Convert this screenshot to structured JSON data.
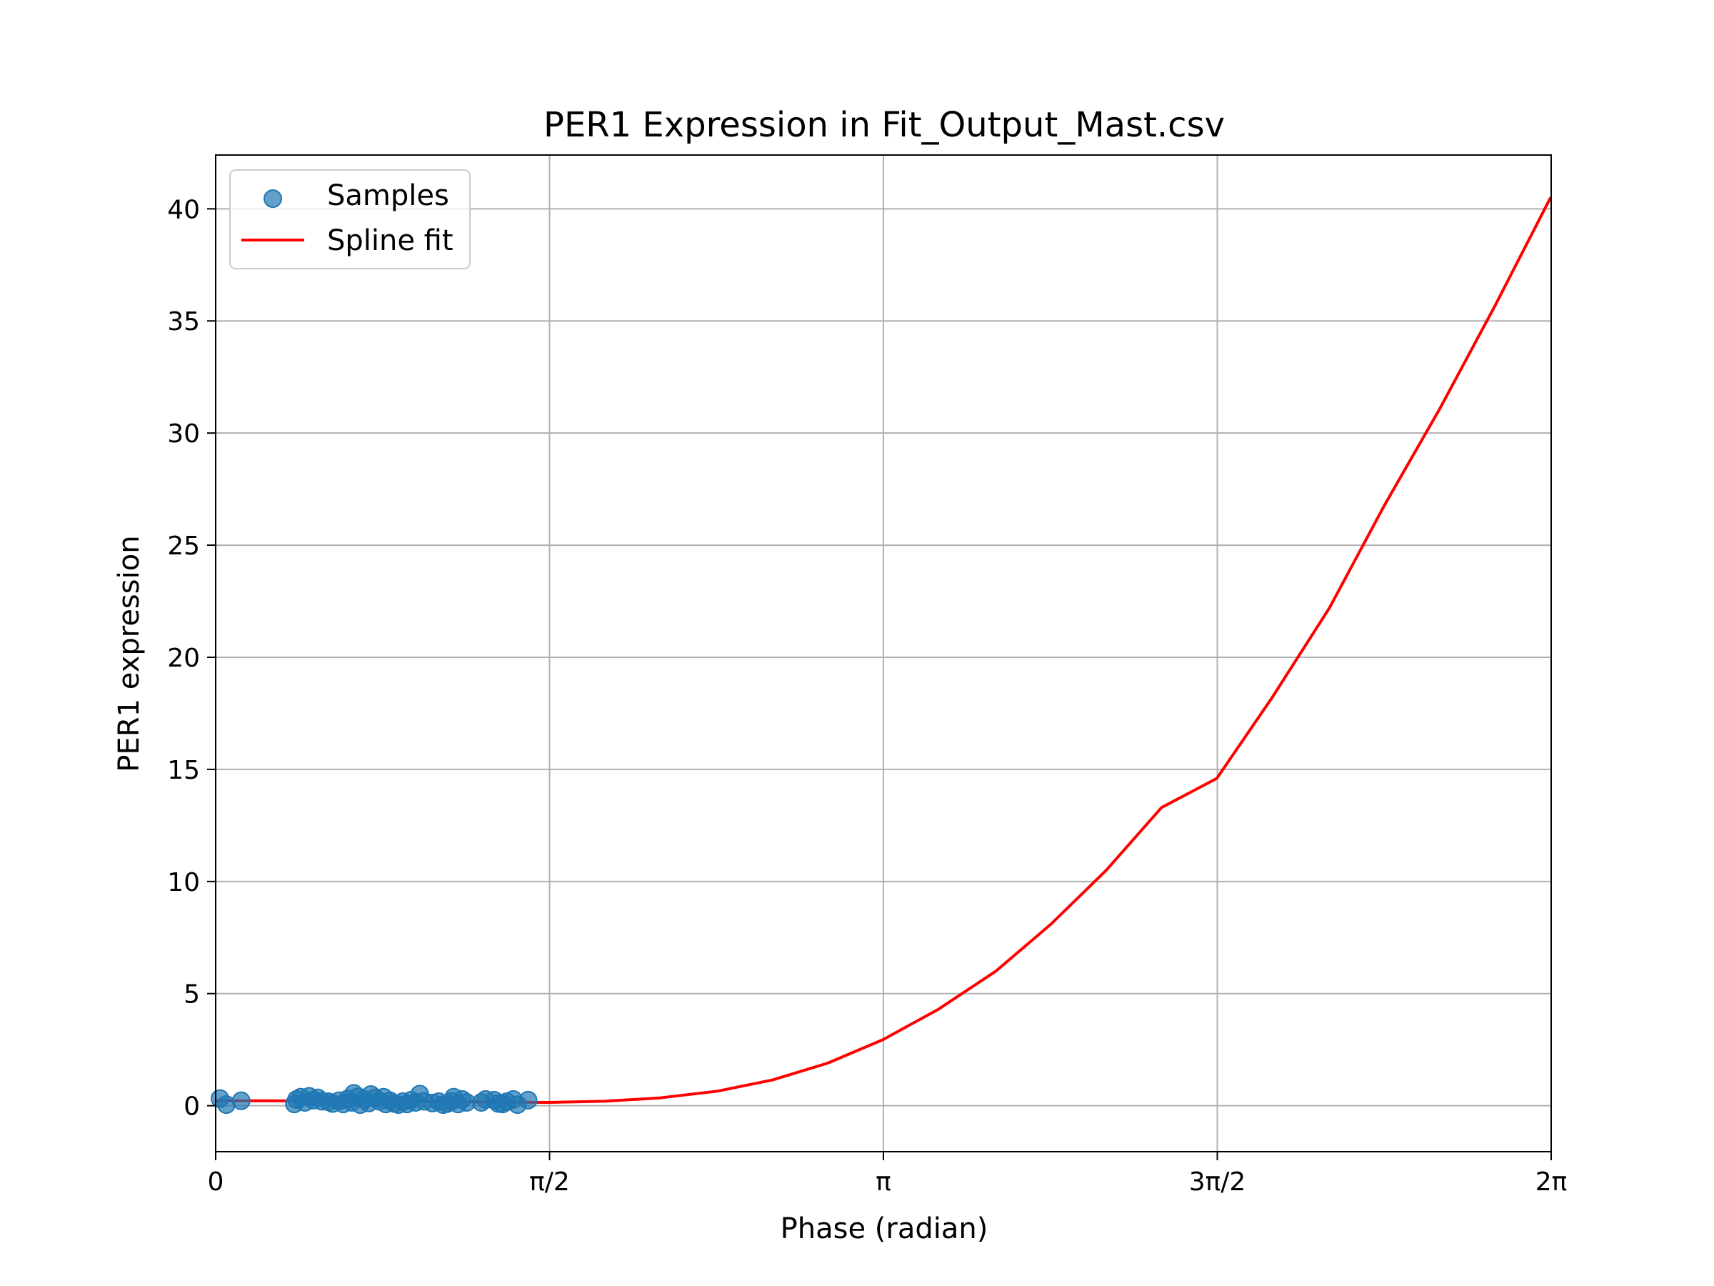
{
  "chart_data": {
    "type": "scatter",
    "title": "PER1 Expression in Fit_Output_Mast.csv",
    "xlabel": "Phase (radian)",
    "ylabel": "PER1 expression",
    "xlim": [
      0,
      6.283185
    ],
    "ylim": [
      -2.05,
      42.4
    ],
    "grid": true,
    "legend_position": "top-left",
    "x_ticks": [
      {
        "value": 0,
        "label": "0"
      },
      {
        "value": 1.570796,
        "label": "π/2"
      },
      {
        "value": 3.141593,
        "label": "π"
      },
      {
        "value": 4.712389,
        "label": "3π/2"
      },
      {
        "value": 6.283185,
        "label": "2π"
      }
    ],
    "y_ticks": [
      {
        "value": 0,
        "label": "0"
      },
      {
        "value": 5,
        "label": "5"
      },
      {
        "value": 10,
        "label": "10"
      },
      {
        "value": 15,
        "label": "15"
      },
      {
        "value": 20,
        "label": "20"
      },
      {
        "value": 25,
        "label": "25"
      },
      {
        "value": 30,
        "label": "30"
      },
      {
        "value": 35,
        "label": "35"
      },
      {
        "value": 40,
        "label": "40"
      }
    ],
    "series": [
      {
        "name": "Samples",
        "kind": "scatter",
        "color": "#1f77b4",
        "points": [
          [
            0.02,
            0.32
          ],
          [
            0.05,
            0.05
          ],
          [
            0.12,
            0.22
          ],
          [
            0.37,
            0.08
          ],
          [
            0.38,
            0.28
          ],
          [
            0.4,
            0.38
          ],
          [
            0.42,
            0.15
          ],
          [
            0.44,
            0.42
          ],
          [
            0.46,
            0.25
          ],
          [
            0.48,
            0.35
          ],
          [
            0.5,
            0.2
          ],
          [
            0.53,
            0.18
          ],
          [
            0.55,
            0.1
          ],
          [
            0.58,
            0.22
          ],
          [
            0.6,
            0.08
          ],
          [
            0.62,
            0.3
          ],
          [
            0.64,
            0.15
          ],
          [
            0.65,
            0.55
          ],
          [
            0.67,
            0.4
          ],
          [
            0.68,
            0.05
          ],
          [
            0.7,
            0.28
          ],
          [
            0.72,
            0.12
          ],
          [
            0.73,
            0.5
          ],
          [
            0.75,
            0.35
          ],
          [
            0.77,
            0.2
          ],
          [
            0.79,
            0.38
          ],
          [
            0.8,
            0.08
          ],
          [
            0.82,
            0.22
          ],
          [
            0.84,
            0.1
          ],
          [
            0.86,
            0.05
          ],
          [
            0.88,
            0.18
          ],
          [
            0.9,
            0.08
          ],
          [
            0.92,
            0.25
          ],
          [
            0.94,
            0.15
          ],
          [
            0.96,
            0.52
          ],
          [
            0.98,
            0.2
          ],
          [
            1.02,
            0.12
          ],
          [
            1.05,
            0.18
          ],
          [
            1.07,
            0.05
          ],
          [
            1.09,
            0.1
          ],
          [
            1.11,
            0.2
          ],
          [
            1.12,
            0.38
          ],
          [
            1.14,
            0.08
          ],
          [
            1.16,
            0.28
          ],
          [
            1.18,
            0.15
          ],
          [
            1.25,
            0.15
          ],
          [
            1.27,
            0.28
          ],
          [
            1.31,
            0.25
          ],
          [
            1.33,
            0.1
          ],
          [
            1.35,
            0.08
          ],
          [
            1.37,
            0.18
          ],
          [
            1.4,
            0.28
          ],
          [
            1.42,
            0.05
          ],
          [
            1.47,
            0.25
          ]
        ]
      },
      {
        "name": "Spline fit",
        "kind": "line",
        "color": "#ff0000",
        "points": [
          [
            0.0,
            0.22
          ],
          [
            0.26,
            0.22
          ],
          [
            0.52,
            0.21
          ],
          [
            0.79,
            0.2
          ],
          [
            1.05,
            0.18
          ],
          [
            1.31,
            0.16
          ],
          [
            1.57,
            0.15
          ],
          [
            1.83,
            0.2
          ],
          [
            2.09,
            0.35
          ],
          [
            2.36,
            0.65
          ],
          [
            2.62,
            1.15
          ],
          [
            2.88,
            1.9
          ],
          [
            3.14,
            2.95
          ],
          [
            3.4,
            4.3
          ],
          [
            3.67,
            6.0
          ],
          [
            3.93,
            8.1
          ],
          [
            4.19,
            10.5
          ],
          [
            4.45,
            13.3
          ],
          [
            4.71,
            14.6
          ],
          [
            4.97,
            18.2
          ],
          [
            5.24,
            22.2
          ],
          [
            5.5,
            26.8
          ],
          [
            5.76,
            31.1
          ],
          [
            6.02,
            35.7
          ],
          [
            6.28,
            40.5
          ]
        ]
      }
    ]
  }
}
